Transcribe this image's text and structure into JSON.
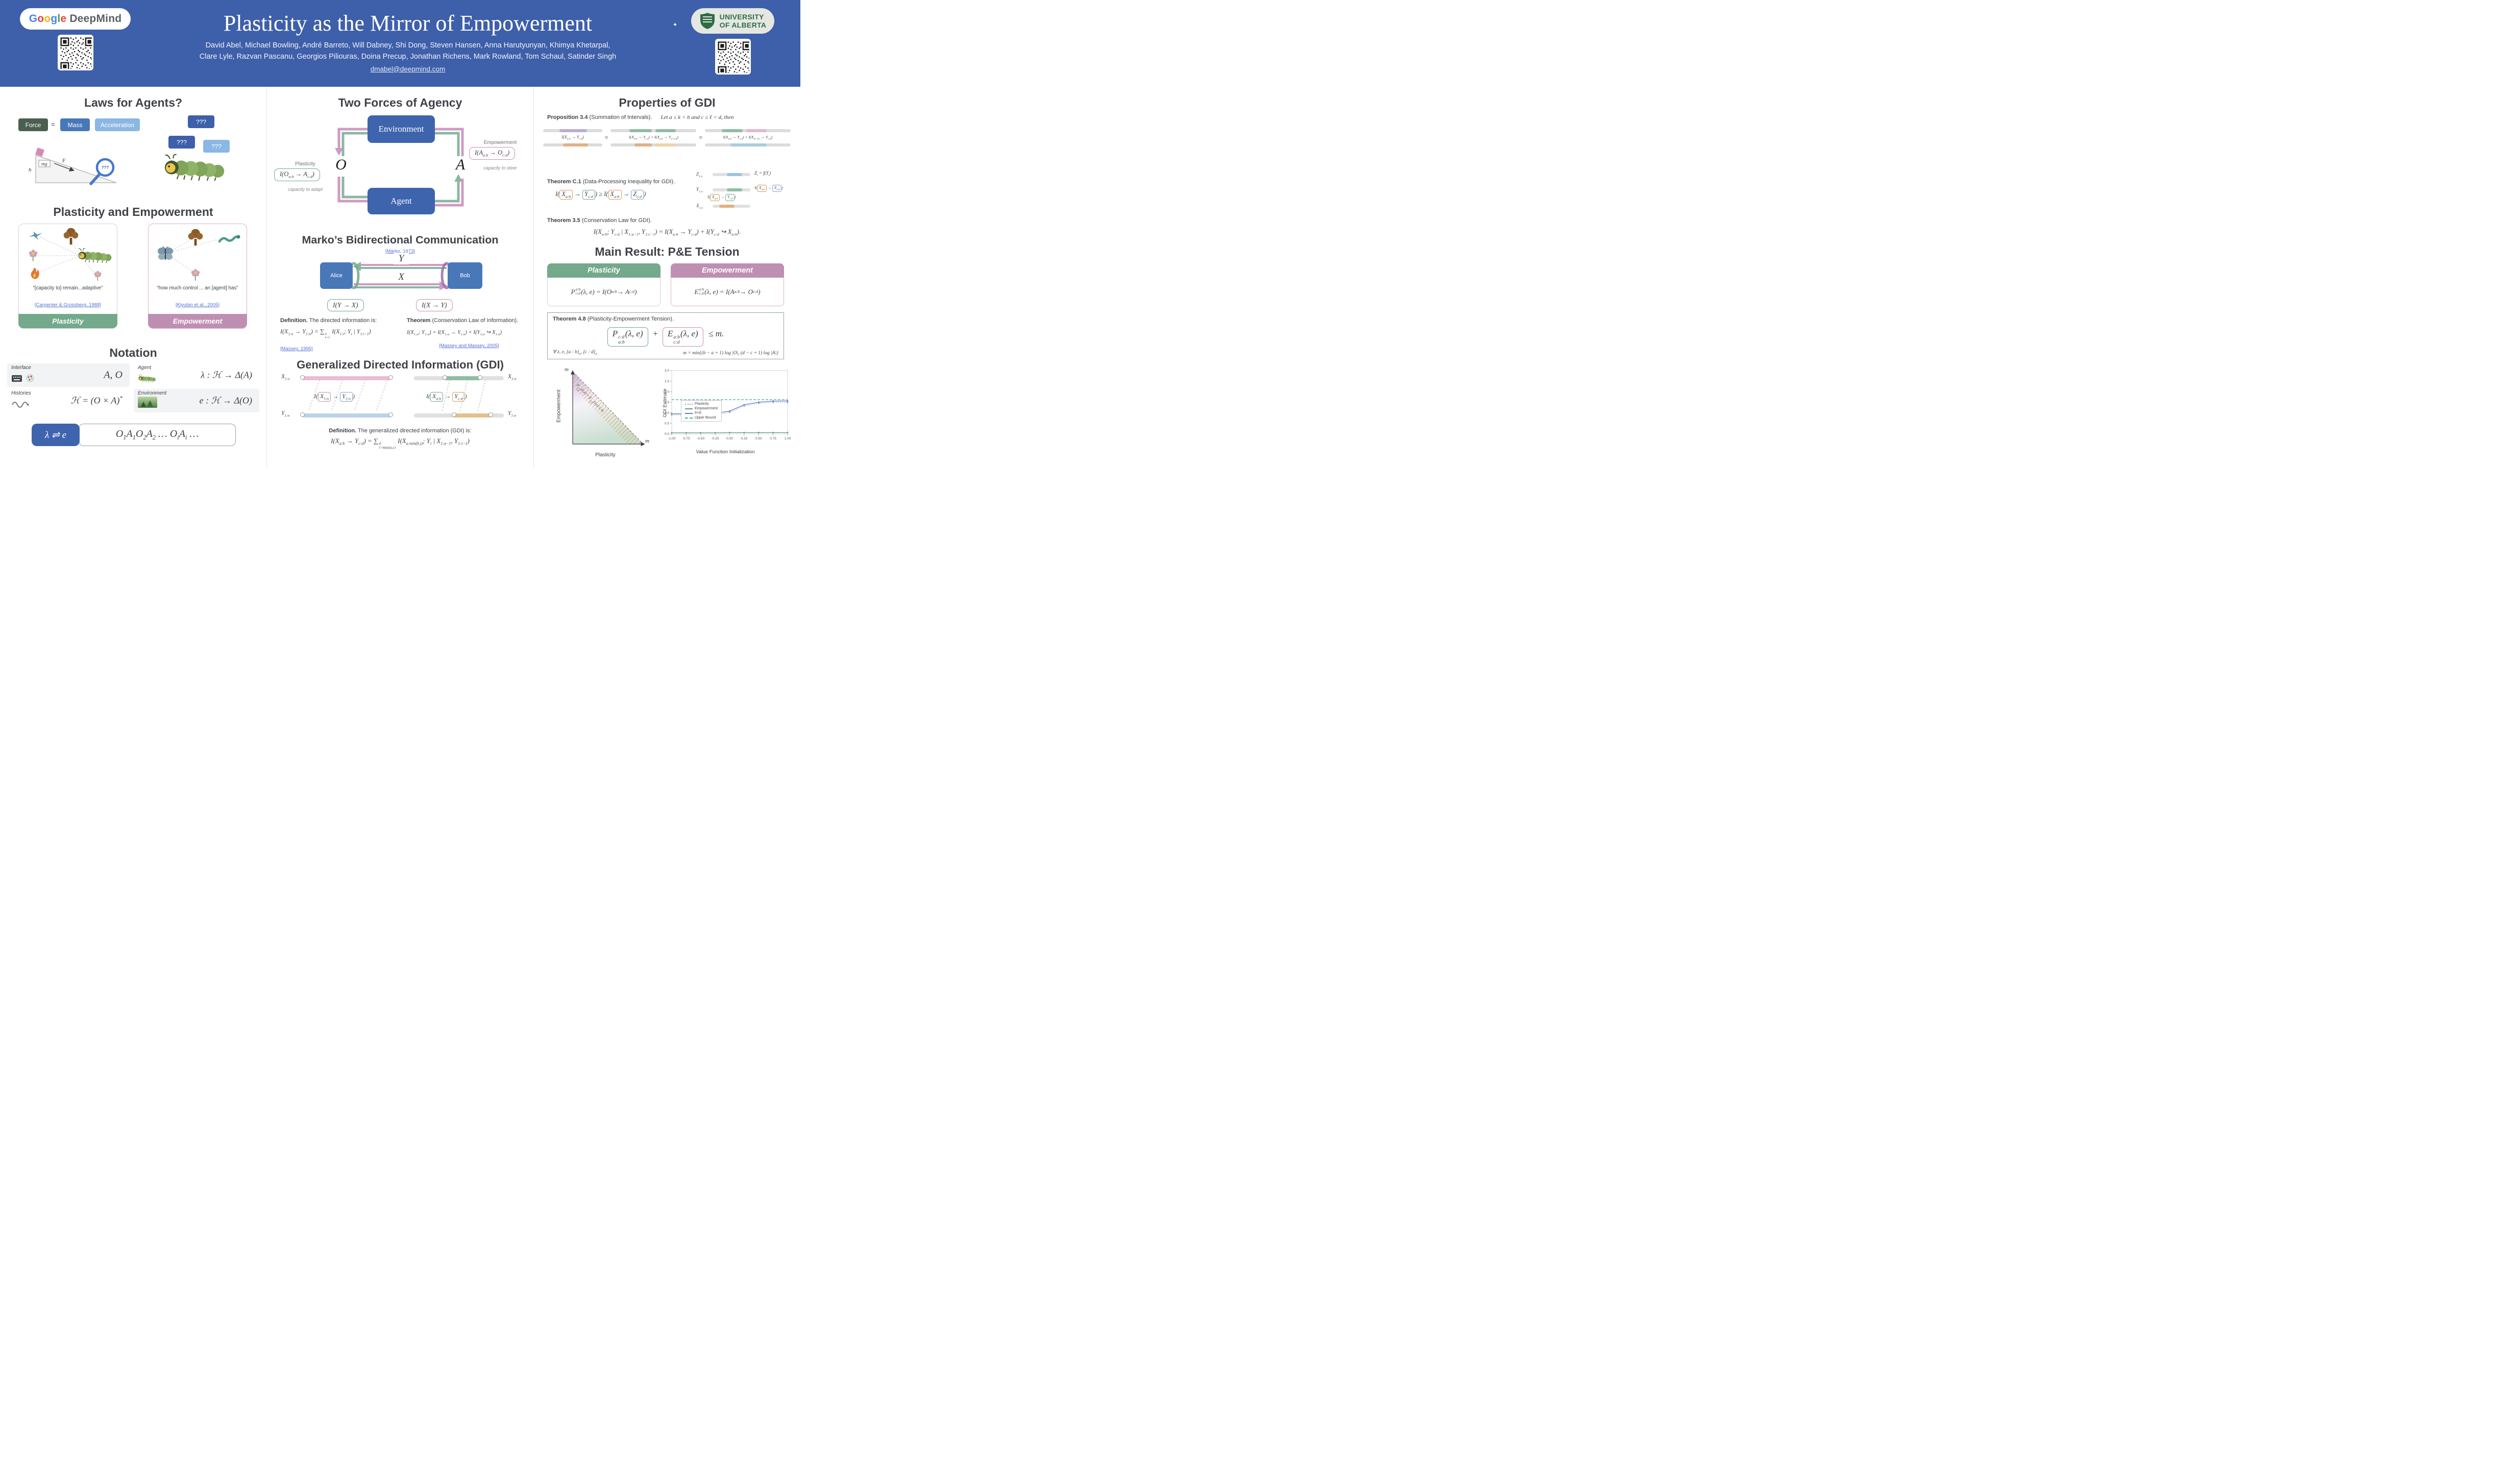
{
  "colors": {
    "header_blue": "#3e5fa9",
    "node_blue": "#3e64ad",
    "mid_blue": "#4878b8",
    "light_blue": "#8ab7e4",
    "plasticity_green": "#74a98c",
    "empowerment_mauve": "#bf8fb2",
    "link_blue": "#5472d3"
  },
  "header": {
    "brand": {
      "g1": "G",
      "o1": "o",
      "o2": "o",
      "g2": "g",
      "l1": "l",
      "e1": "e",
      "deepmind": "DeepMind"
    },
    "title": "Plasticity as the Mirror of Empowerment",
    "authors1": "David Abel, Michael Bowling, André Barreto, Will Dabney, Shi Dong, Steven Hansen, Anna Harutyunyan, Khimya Khetarpal,",
    "authors2": "Clare Lyle, Razvan Pascanu, Georgios Piliouras, Doina Precup, Jonathan Richens, Mark Rowland, Tom Schaul, Satinder Singh",
    "email": "dmabel@deepmind.com",
    "university_line1": "UNIVERSITY",
    "university_line2": "OF ALBERTA",
    "sparkle": "✦"
  },
  "laws": {
    "heading": "Laws for Agents?",
    "force": "Force",
    "equals": "=",
    "mass": "Mass",
    "acceleration": "Acceleration",
    "q_top": "???",
    "q_mid": "???",
    "q_light": "???",
    "q_lens": "???",
    "h": "h",
    "mg": "mg",
    "F": "F"
  },
  "pe": {
    "heading": "Plasticity and Empowerment",
    "plasticity_quote": "“[capacity to] remain...adaptive”",
    "plasticity_cite": "[Carpenter & Grossberg, 1988]",
    "plasticity_label": "Plasticity",
    "empowerment_quote": "“how much control ... an [agent] has”",
    "empowerment_cite": "[Klyubin et al., 2005]",
    "empowerment_label": "Empowerment"
  },
  "notation": {
    "heading": "Notation",
    "interface_label": "Interface",
    "interface_value": "A, O",
    "agent_label": "Agent",
    "agent_value": "λ : ℋ → Δ(A)",
    "histories_label": "Histories",
    "histories_value": "ℋ = (O × A)^{*}",
    "environment_label": "Environment",
    "environment_value": "e : ℋ → Δ(O)",
    "lambda_e": "λ ⇌ e",
    "trajectory": "O_{1}A_{1}O_{2}A_{2} … O_{i}A_{i} …"
  },
  "forces": {
    "heading": "Two Forces of Agency",
    "environment": "Environment",
    "agent": "Agent",
    "obs": "O",
    "act": "A",
    "plasticity_label": "Plasticity",
    "plasticity_formula": "I(O_{a:b} → A_{c:d})",
    "plasticity_caption": "capacity to adapt",
    "empowerment_label": "Empowerment",
    "empowerment_formula": "I(A_{a:b} → O_{c:d})",
    "empowerment_caption": "capacity to steer"
  },
  "marko": {
    "heading": "Marko’s Bidirectional Communication",
    "cite": "[Marko, 1973]",
    "alice": "Alice",
    "bob": "Bob",
    "x": "X",
    "y": "Y",
    "iyx": "I(Y → X)",
    "ixy": "I(X → Y)",
    "def_title": "Definition.",
    "def_text": " The directed information is:",
    "def_formula": "I(X_{1:n} → Y_{1:n}) = ∑^{n}_{i=1} I(X_{1:i}; Y_{i} | Y_{1:i−1})",
    "def_cite": "[Massey, 1995]",
    "thm_title": "Theorem",
    "thm_text": " (Conservation Law of Information).",
    "thm_formula": "I(X_{1:n}; Y_{1:n}) = I(X_{1:n} → Y_{1:n}) + I(Y_{1:n} ↪ X_{1:n})",
    "thm_cite": "[Massey and Massey, 2005]"
  },
  "gdi": {
    "heading": "Generalized Directed Information (GDI)",
    "x1n": "X_{1:n}",
    "y1n": "Y_{1:n}",
    "label_left": "I(\\p{X_{1:n}} → \\b{Y_{1:n}})",
    "label_right": "I(\\g{X_{a:b}} → \\o{Y_{c:d}})",
    "def_title": "Definition.",
    "def_text": " The generalized directed information (GDI) is:",
    "def_formula": "I(X_{a:b} → Y_{c:d}) = ∑^{d}_{i=max(a,c)} I(X_{a:min(b,i)}; Y_{i} | X_{1:a−1}, Y_{1:i−1})"
  },
  "props": {
    "heading": "Properties of GDI",
    "prop_title": "Proposition 3.4",
    "prop_text": " (Summation of Intervals).",
    "prop_cond": "Let a ≤ k < b and c ≤ ℓ < d, then",
    "eq1": "I(X_{a:b} → Y_{c:d})",
    "eq_sign1": "=",
    "eq2": "I(X_{a:b} → Y_{c:ℓ}) + I(X_{a:b} → Y_{ℓ+1:d})",
    "eq_sign2": "=",
    "eq3": "I(X_{a:k} → Y_{c:d}) + I(X_{k+1:b} → Y_{c:d})",
    "dpi_title": "Theorem C.1",
    "dpi_text": " (Data-Processing Inequality for GDI).",
    "dpi_formula": "I(\\o{X_{a:b}} → \\g{Y_{c:d}}) ≥ I(\\o{X_{a:b}} → \\b{Z_{c:d}})",
    "z1n": "Z_{1:n}",
    "y1n": "Y_{1:n}",
    "x1n": "X_{1:n}",
    "zfy": "Z_{i} = f(Y_{i})",
    "dpi_small1": "I(\\o{X_{a:b}} → \\g{Y_{c:d}})",
    "dpi_small2": "I(\\o{X_{a:b}} → \\b{Z_{c:d}})",
    "cons_title": "Theorem 3.5",
    "cons_text": " (Conservation Law for GDI).",
    "cons_formula": "I(X_{a:b}; Y_{c:d} | X_{1:a−1}, Y_{1:c−1}) = I(X_{a:b} → Y_{c:d}) + I(Y_{c:d} ↪ X_{a:b})."
  },
  "main_result": {
    "heading": "Main Result: P&E Tension",
    "plasticity_label": "Plasticity",
    "plasticity_formula": "P^{a:b}_{c:d}(λ, e) = I(O_{a:b} → A_{c:d})",
    "empowerment_label": "Empowerment",
    "empowerment_formula": "E^{a:b}_{c:d}(λ, e) = I(A_{a:b} → O_{c:d})",
    "thm_title": "Theorem 4.8",
    "thm_text": " (Plasticity-Empowerment Tension).",
    "term_p": "P^{c:d}_{a:b}(λ, e)",
    "plus": "+",
    "term_e": "E^{a:b}_{c:d}(λ, e)",
    "leq": "≤ m.",
    "quantifier": "∀ λ, e, [a : b]_{n}, [c : d]_{n}",
    "bound": "m = min{(b − a + 1) log |O|, (d − c + 1) log |A|}"
  },
  "tension_plot": {
    "ylabel": "Empowerment",
    "xlabel": "Plasticity",
    "m_top": "m",
    "m_right": "m",
    "diag_label": "P^{c:d}_{a:b}(λ,e) + E^{a:b}_{c:d}(λ,e) ≤ m"
  },
  "chart_data": {
    "type": "line",
    "title": "",
    "xlabel": "Value Function Initialization",
    "ylabel": "GDI Estimate",
    "xlim": [
      -1.0,
      1.0
    ],
    "ylim": [
      0.0,
      3.0
    ],
    "xticks": [
      -1.0,
      -0.75,
      -0.5,
      -0.25,
      0.0,
      0.25,
      0.5,
      0.75,
      1.0
    ],
    "yticks": [
      0.0,
      0.5,
      1.0,
      1.5,
      2.0,
      2.5,
      3.0
    ],
    "x": [
      -1.0,
      -0.75,
      -0.5,
      -0.25,
      0.0,
      0.25,
      0.5,
      0.75,
      1.0
    ],
    "legend_position": "center-left",
    "grid": false,
    "series": [
      {
        "name": "Plasticity",
        "color": "#9aa0a6",
        "style": "dotted",
        "values": [
          0.9,
          0.9,
          0.9,
          0.92,
          1.02,
          1.32,
          1.45,
          1.5,
          1.5
        ]
      },
      {
        "name": "Empowerment",
        "color": "#5a9e7c",
        "style": "solid",
        "values": [
          0.05,
          0.05,
          0.05,
          0.05,
          0.06,
          0.06,
          0.06,
          0.06,
          0.06
        ]
      },
      {
        "name": "P+E",
        "color": "#5b7fd4",
        "style": "solid",
        "values": [
          0.95,
          0.95,
          0.95,
          0.97,
          1.08,
          1.38,
          1.5,
          1.55,
          1.56
        ]
      },
      {
        "name": "Upper Bound",
        "color": "#3aa6a0",
        "style": "dashed",
        "values": [
          1.62,
          1.62,
          1.62,
          1.62,
          1.62,
          1.62,
          1.62,
          1.62,
          1.62
        ]
      }
    ]
  }
}
